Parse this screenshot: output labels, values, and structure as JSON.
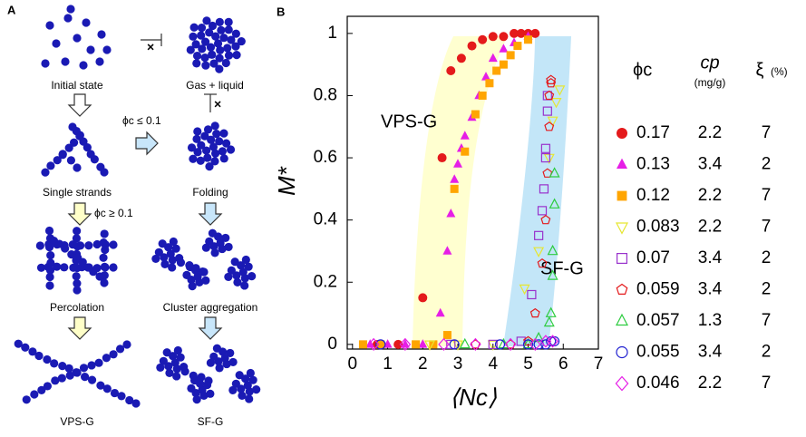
{
  "panel_a": {
    "label": "A",
    "nodes": [
      {
        "label": "Initial state"
      },
      {
        "label": "Gas + liquid"
      },
      {
        "label": "Single strands"
      },
      {
        "label": "Folding"
      },
      {
        "label": "Percolation"
      },
      {
        "label": "Cluster aggregation"
      },
      {
        "label": "VPS-G"
      },
      {
        "label": "SF-G"
      }
    ],
    "conditions": [
      "ϕc ≤ 0.1",
      "ϕc ≥ 0.1"
    ]
  },
  "chart_data": {
    "type": "scatter",
    "panel_label": "B",
    "x_label": "⟨Nc⟩",
    "y_label": "M*",
    "xlim": [
      -0.15,
      7
    ],
    "xticks": [
      0,
      1,
      2,
      3,
      4,
      5,
      6,
      7
    ],
    "ylim": [
      -0.015,
      1.055
    ],
    "yticks": [
      0,
      0.2,
      0.4,
      0.6,
      0.8,
      1
    ],
    "annotations": [
      "VPS-G",
      "SF-G"
    ],
    "legend_headers": [
      {
        "label": "ϕc"
      },
      {
        "label": "cp",
        "unit": "(mg/g)"
      },
      {
        "label": "ξ",
        "unit": "(%)"
      }
    ],
    "series": [
      {
        "name": "0.17",
        "cp": "2.2",
        "xi": "7",
        "color": "#e41a1c",
        "marker": "circle",
        "filled": true,
        "x": [
          0.7,
          1.3,
          2.0,
          2.55,
          2.8,
          3.1,
          3.4,
          3.7,
          4.0,
          4.3,
          4.6,
          4.8,
          5.0,
          5.2
        ],
        "values": [
          0,
          0,
          0.15,
          0.6,
          0.88,
          0.92,
          0.96,
          0.98,
          0.99,
          0.99,
          1,
          1,
          1,
          1
        ]
      },
      {
        "name": "0.13",
        "cp": "3.4",
        "xi": "2",
        "color": "#e61ee6",
        "marker": "triangle",
        "filled": true,
        "x": [
          0.5,
          1.0,
          1.5,
          2.0,
          2.5,
          2.7,
          2.8,
          2.9,
          3.0,
          3.1,
          3.2,
          3.4,
          3.6,
          3.8,
          4.0,
          4.3,
          4.6,
          5.0
        ],
        "values": [
          0,
          0,
          0,
          0,
          0.1,
          0.3,
          0.42,
          0.53,
          0.58,
          0.63,
          0.67,
          0.73,
          0.8,
          0.86,
          0.92,
          0.95,
          0.97,
          0.99
        ]
      },
      {
        "name": "0.12",
        "cp": "2.2",
        "xi": "7",
        "color": "#ffa500",
        "marker": "square",
        "filled": true,
        "x": [
          0.3,
          0.8,
          1.8,
          2.3,
          2.7,
          2.9,
          3.2,
          3.5,
          3.7,
          3.9,
          4.1,
          4.3,
          4.5,
          4.7,
          5.0
        ],
        "values": [
          0,
          0,
          0,
          0,
          0.03,
          0.5,
          0.62,
          0.74,
          0.8,
          0.84,
          0.88,
          0.9,
          0.93,
          0.96,
          0.98
        ]
      },
      {
        "name": "0.083",
        "cp": "2.2",
        "xi": "7",
        "color": "#e6e632",
        "marker": "down-triangle",
        "filled": false,
        "x": [
          2.2,
          3.0,
          4.0,
          4.9,
          5.3,
          5.6,
          5.7,
          5.8,
          5.9
        ],
        "values": [
          0,
          0,
          0,
          0.18,
          0.3,
          0.6,
          0.72,
          0.78,
          0.82
        ]
      },
      {
        "name": "0.07",
        "cp": "3.4",
        "xi": "2",
        "color": "#9932cc",
        "marker": "square",
        "filled": false,
        "x": [
          2.8,
          4.0,
          4.8,
          5.1,
          5.3,
          5.4,
          5.45,
          5.5,
          5.5,
          5.55,
          5.55
        ],
        "values": [
          0,
          0,
          0.01,
          0.16,
          0.35,
          0.43,
          0.5,
          0.6,
          0.63,
          0.75,
          0.8
        ]
      },
      {
        "name": "0.059",
        "cp": "3.4",
        "xi": "2",
        "color": "#e41a1c",
        "marker": "pentagon",
        "filled": false,
        "x": [
          3.5,
          4.5,
          5.0,
          5.2,
          5.4,
          5.5,
          5.55,
          5.6,
          5.6,
          5.65,
          5.65
        ],
        "values": [
          0,
          0,
          0.01,
          0.1,
          0.26,
          0.4,
          0.55,
          0.7,
          0.8,
          0.85,
          0.84
        ]
      },
      {
        "name": "0.057",
        "cp": "1.3",
        "xi": "7",
        "color": "#2ecc40",
        "marker": "triangle",
        "filled": false,
        "x": [
          3.2,
          4.3,
          5.0,
          5.3,
          5.6,
          5.65,
          5.7,
          5.7,
          5.75,
          5.75
        ],
        "values": [
          0,
          0,
          0,
          0.02,
          0.07,
          0.1,
          0.22,
          0.3,
          0.45,
          0.55
        ]
      },
      {
        "name": "0.055",
        "cp": "3.4",
        "xi": "2",
        "color": "#1f1fd0",
        "marker": "circle",
        "filled": false,
        "x": [
          0.8,
          2.9,
          4.2,
          5.0,
          5.3,
          5.5,
          5.65,
          5.75
        ],
        "values": [
          0,
          0,
          0,
          0,
          0,
          0,
          0.01,
          0.01
        ]
      },
      {
        "name": "0.046",
        "cp": "2.2",
        "xi": "7",
        "color": "#e61ee6",
        "marker": "diamond",
        "filled": false,
        "x": [
          0.6,
          1.5,
          2.6,
          3.5,
          4.5,
          5.2,
          5.5,
          5.7
        ],
        "values": [
          0,
          0,
          0,
          0,
          0,
          0,
          0.01,
          0.01
        ]
      }
    ]
  }
}
